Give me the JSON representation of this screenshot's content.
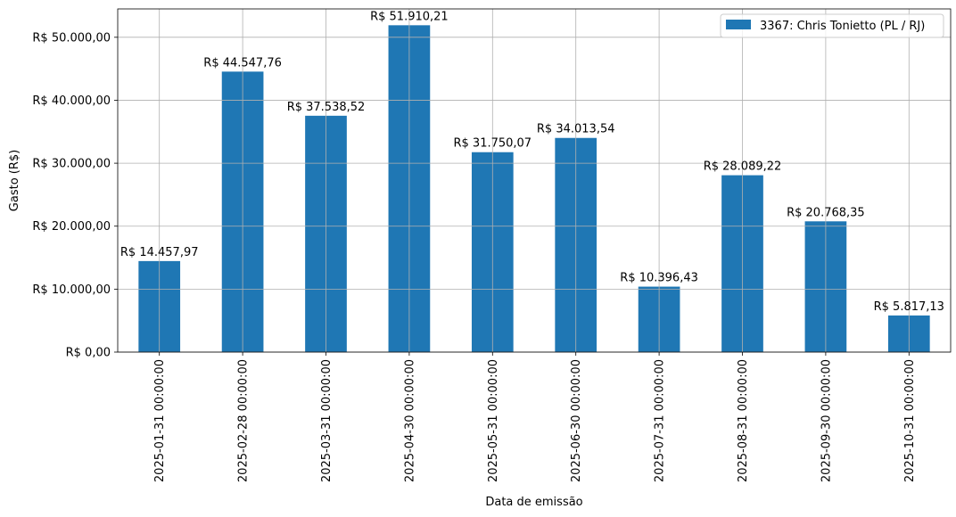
{
  "chart_data": {
    "type": "bar",
    "xlabel": "Data de emissão",
    "ylabel": "Gasto (R$)",
    "ylim": [
      0,
      54505.72
    ],
    "yticks": [
      0,
      10000,
      20000,
      30000,
      40000,
      50000
    ],
    "ytick_labels": [
      "R$ 0,00",
      "R$ 10.000,00",
      "R$ 20.000,00",
      "R$ 30.000,00",
      "R$ 40.000,00",
      "R$ 50.000,00"
    ],
    "grid": true,
    "legend_position": "top-right",
    "categories": [
      "2025-01-31 00:00:00",
      "2025-02-28 00:00:00",
      "2025-03-31 00:00:00",
      "2025-04-30 00:00:00",
      "2025-05-31 00:00:00",
      "2025-06-30 00:00:00",
      "2025-07-31 00:00:00",
      "2025-08-31 00:00:00",
      "2025-09-30 00:00:00",
      "2025-10-31 00:00:00"
    ],
    "series": [
      {
        "name": "3367: Chris Tonietto (PL / RJ)",
        "color": "#1f77b4",
        "values": [
          14457.97,
          44547.76,
          37538.52,
          51910.21,
          31750.07,
          34013.54,
          10396.43,
          28089.22,
          20768.35,
          5817.13
        ],
        "labels": [
          "R$ 14.457,97",
          "R$ 44.547,76",
          "R$ 37.538,52",
          "R$ 51.910,21",
          "R$ 31.750,07",
          "R$ 34.013,54",
          "R$ 10.396,43",
          "R$ 28.089,22",
          "R$ 20.768,35",
          "R$ 5.817,13"
        ]
      }
    ]
  }
}
